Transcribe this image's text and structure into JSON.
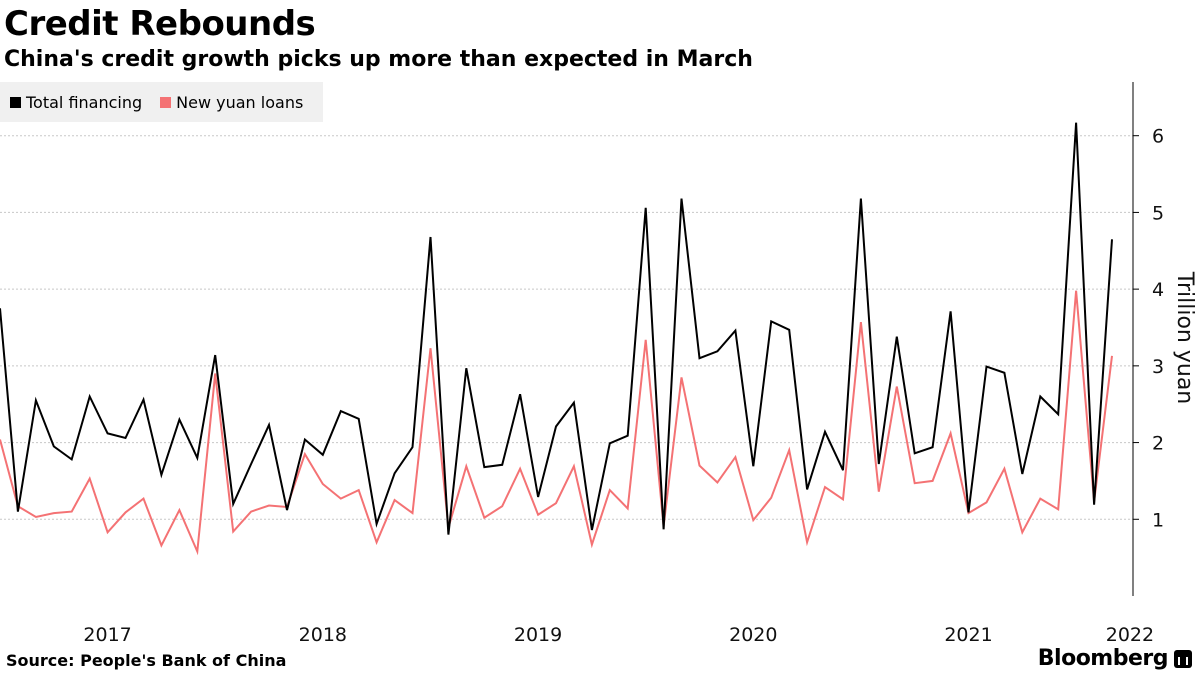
{
  "header": {
    "title": "Credit Rebounds",
    "subtitle": "China's credit growth picks up more than expected in March"
  },
  "footer": {
    "source": "Source: People's Bank of China",
    "brand": "Bloomberg"
  },
  "colors": {
    "total_financing": "#000000",
    "new_yuan_loans": "#f47274",
    "gridline": "#c8c8c8",
    "legend_bg": "#f0f0f0"
  },
  "chart_data": {
    "type": "line",
    "title": "Credit Rebounds",
    "subtitle": "China's credit growth picks up more than expected in March",
    "xlabel": "",
    "ylabel": "Trillion yuan",
    "y_axis_side": "right",
    "ylim": [
      0,
      6.7
    ],
    "yticks": [
      1,
      2,
      3,
      4,
      5,
      6
    ],
    "grid": true,
    "legend_position": "top-left",
    "x_start": "2016-12",
    "x_end": "2022-03",
    "x_unit": "month",
    "x_tick_labels": [
      {
        "label": "2017",
        "month_index": 6
      },
      {
        "label": "2018",
        "month_index": 18
      },
      {
        "label": "2019",
        "month_index": 30
      },
      {
        "label": "2020",
        "month_index": 42
      },
      {
        "label": "2021",
        "month_index": 54
      },
      {
        "label": "2022",
        "month_index": 63
      }
    ],
    "series": [
      {
        "name": "Total financing",
        "color": "#000000",
        "values": [
          3.75,
          1.1,
          2.55,
          1.95,
          1.78,
          2.6,
          2.12,
          2.06,
          2.56,
          1.58,
          2.3,
          1.8,
          3.14,
          1.2,
          1.72,
          2.23,
          1.12,
          2.04,
          1.84,
          2.41,
          2.31,
          0.94,
          1.6,
          1.94,
          4.68,
          0.8,
          2.97,
          1.68,
          1.71,
          2.63,
          1.29,
          2.21,
          2.52,
          0.86,
          1.99,
          2.09,
          5.06,
          0.87,
          5.18,
          3.1,
          3.19,
          3.46,
          1.69,
          3.58,
          3.47,
          1.39,
          2.14,
          1.64,
          5.18,
          1.72,
          3.38,
          1.86,
          1.94,
          3.71,
          1.09,
          2.99,
          2.91,
          1.59,
          2.6,
          2.37,
          6.17,
          1.19,
          4.65
        ]
      },
      {
        "name": "New yuan loans",
        "color": "#f47274",
        "values": [
          2.04,
          1.17,
          1.03,
          1.08,
          1.1,
          1.53,
          0.83,
          1.09,
          1.27,
          0.66,
          1.12,
          0.58,
          2.9,
          0.84,
          1.1,
          1.18,
          1.16,
          1.85,
          1.46,
          1.27,
          1.38,
          0.7,
          1.25,
          1.08,
          3.23,
          0.89,
          1.69,
          1.02,
          1.17,
          1.66,
          1.06,
          1.21,
          1.69,
          0.67,
          1.38,
          1.14,
          3.34,
          0.91,
          2.85,
          1.7,
          1.48,
          1.81,
          0.99,
          1.28,
          1.9,
          0.7,
          1.42,
          1.26,
          3.57,
          1.36,
          2.73,
          1.47,
          1.5,
          2.12,
          1.08,
          1.22,
          1.66,
          0.83,
          1.27,
          1.13,
          3.98,
          1.23,
          3.13
        ]
      }
    ]
  }
}
